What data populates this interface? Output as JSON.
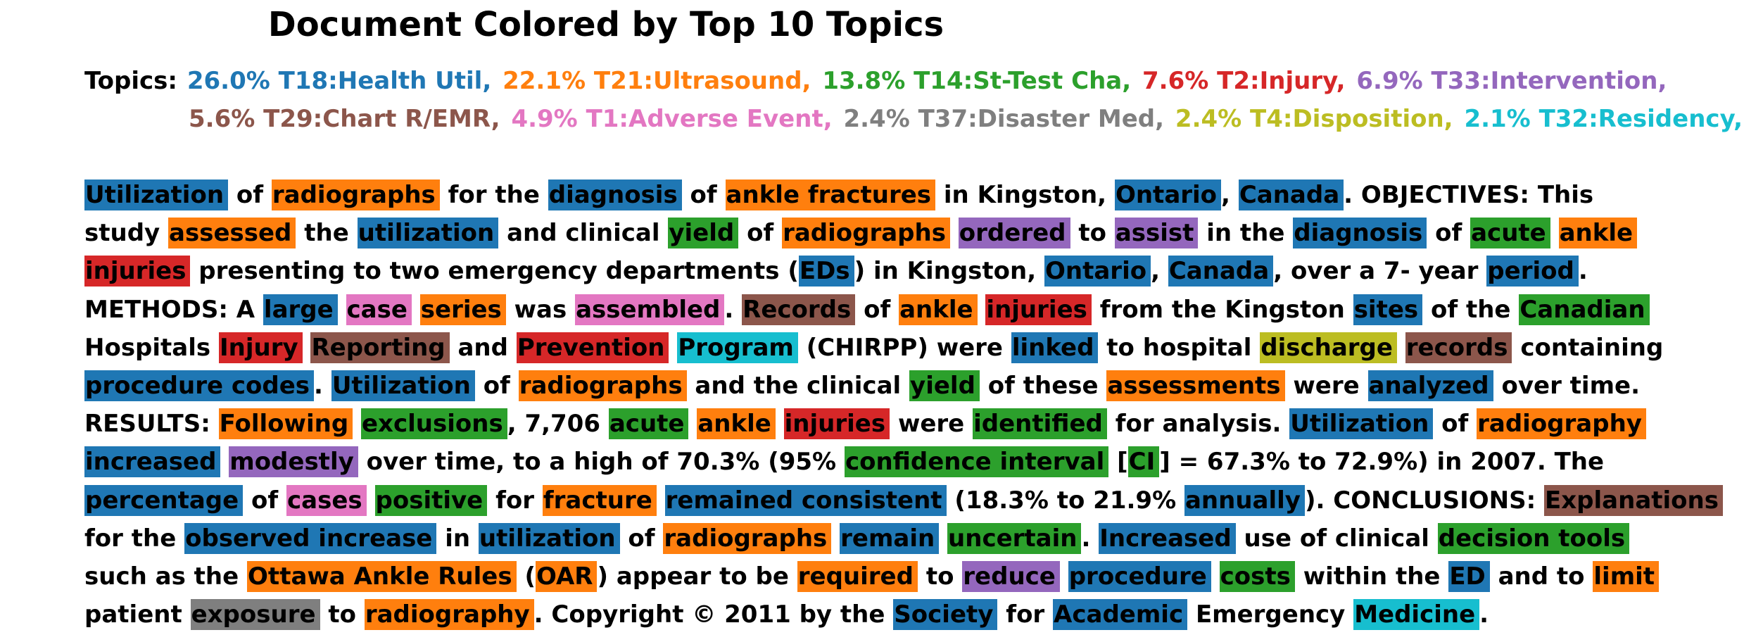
{
  "title": "Document Colored by Top 10 Topics",
  "legend": {
    "label": "Topics:",
    "rows": [
      [
        {
          "text": "26.0% T18:Health Util,",
          "color": "#1f77b4"
        },
        {
          "text": "22.1% T21:Ultrasound,",
          "color": "#ff7f0e"
        },
        {
          "text": "13.8% T14:St-Test Cha,",
          "color": "#2ca02c"
        },
        {
          "text": "7.6% T2:Injury,",
          "color": "#d62728"
        },
        {
          "text": "6.9% T33:Intervention,",
          "color": "#9467bd"
        }
      ],
      [
        {
          "text": "5.6% T29:Chart R/EMR,",
          "color": "#8c564b"
        },
        {
          "text": "4.9% T1:Adverse Event,",
          "color": "#e377c2"
        },
        {
          "text": "2.4% T37:Disaster Med,",
          "color": "#7f7f7f"
        },
        {
          "text": "2.4% T4:Disposition,",
          "color": "#bcbd22"
        },
        {
          "text": "2.1% T32:Residency,",
          "color": "#17becf"
        }
      ]
    ]
  },
  "topic_colors": {
    "T18": "#1f77b4",
    "T21": "#ff7f0e",
    "T14": "#2ca02c",
    "T2": "#d62728",
    "T33": "#9467bd",
    "T29": "#8c564b",
    "T1": "#e377c2",
    "T37": "#7f7f7f",
    "T4": "#bcbd22",
    "T32": "#17becf"
  },
  "lines": [
    [
      [
        "Utilization",
        "T18"
      ],
      [
        "of",
        null
      ],
      [
        "radiographs",
        "T21"
      ],
      [
        "for the",
        null
      ],
      [
        "diagnosis",
        "T18"
      ],
      [
        "of",
        null
      ],
      [
        "ankle fractures",
        "T21"
      ],
      [
        "in Kingston,",
        null
      ],
      [
        "Ontario",
        "T18"
      ],
      [
        ",",
        null
      ],
      [
        "Canada",
        "T18"
      ],
      [
        ". OBJECTIVES: This",
        null
      ]
    ],
    [
      [
        "study",
        null
      ],
      [
        "assessed",
        "T21"
      ],
      [
        "the",
        null
      ],
      [
        "utilization",
        "T18"
      ],
      [
        "and clinical",
        null
      ],
      [
        "yield",
        "T14"
      ],
      [
        "of",
        null
      ],
      [
        "radiographs",
        "T21"
      ],
      [
        "ordered",
        "T33"
      ],
      [
        "to",
        null
      ],
      [
        "assist",
        "T33"
      ],
      [
        "in the",
        null
      ],
      [
        "diagnosis",
        "T18"
      ],
      [
        "of",
        null
      ],
      [
        "acute",
        "T14"
      ],
      [
        "ankle",
        "T21"
      ]
    ],
    [
      [
        "injuries",
        "T2"
      ],
      [
        "presenting to two emergency departments (",
        null
      ],
      [
        "EDs",
        "T18"
      ],
      [
        ") in Kingston,",
        null
      ],
      [
        "Ontario",
        "T18"
      ],
      [
        ",",
        null
      ],
      [
        "Canada",
        "T18"
      ],
      [
        ", over a 7- year",
        null
      ],
      [
        "period",
        "T18"
      ],
      [
        ".",
        null
      ]
    ],
    [
      [
        "METHODS: A",
        null
      ],
      [
        "large",
        "T18"
      ],
      [
        "case",
        "T1"
      ],
      [
        "series",
        "T21"
      ],
      [
        "was",
        null
      ],
      [
        "assembled",
        "T1"
      ],
      [
        ".",
        null
      ],
      [
        "Records",
        "T29"
      ],
      [
        "of",
        null
      ],
      [
        "ankle",
        "T21"
      ],
      [
        "injuries",
        "T2"
      ],
      [
        "from the Kingston",
        null
      ],
      [
        "sites",
        "T18"
      ],
      [
        "of the",
        null
      ],
      [
        "Canadian",
        "T14"
      ]
    ],
    [
      [
        "Hospitals",
        null
      ],
      [
        "Injury",
        "T2"
      ],
      [
        "Reporting",
        "T29"
      ],
      [
        "and",
        null
      ],
      [
        "Prevention",
        "T2"
      ],
      [
        "Program",
        "T32"
      ],
      [
        "(CHIRPP) were",
        null
      ],
      [
        "linked",
        "T18"
      ],
      [
        "to hospital",
        null
      ],
      [
        "discharge",
        "T4"
      ],
      [
        "records",
        "T29"
      ],
      [
        "containing",
        null
      ]
    ],
    [
      [
        "procedure codes",
        "T18"
      ],
      [
        ".",
        null
      ],
      [
        "Utilization",
        "T18"
      ],
      [
        "of",
        null
      ],
      [
        "radiographs",
        "T21"
      ],
      [
        "and the clinical",
        null
      ],
      [
        "yield",
        "T14"
      ],
      [
        "of these",
        null
      ],
      [
        "assessments",
        "T21"
      ],
      [
        "were",
        null
      ],
      [
        "analyzed",
        "T18"
      ],
      [
        "over time.",
        null
      ]
    ],
    [
      [
        "RESULTS:",
        null
      ],
      [
        "Following",
        "T21"
      ],
      [
        "exclusions",
        "T14"
      ],
      [
        ", 7,706",
        null
      ],
      [
        "acute",
        "T14"
      ],
      [
        "ankle",
        "T21"
      ],
      [
        "injuries",
        "T2"
      ],
      [
        "were",
        null
      ],
      [
        "identified",
        "T14"
      ],
      [
        "for analysis.",
        null
      ],
      [
        "Utilization",
        "T18"
      ],
      [
        "of",
        null
      ],
      [
        "radiography",
        "T21"
      ]
    ],
    [
      [
        "increased",
        "T18"
      ],
      [
        "modestly",
        "T33"
      ],
      [
        "over time, to a high of 70.3% (95%",
        null
      ],
      [
        "confidence interval",
        "T14"
      ],
      [
        "[",
        null
      ],
      [
        "CI",
        "T14"
      ],
      [
        "] = 67.3% to 72.9%) in 2007. The",
        null
      ]
    ],
    [
      [
        "percentage",
        "T18"
      ],
      [
        "of",
        null
      ],
      [
        "cases",
        "T1"
      ],
      [
        "positive",
        "T14"
      ],
      [
        "for",
        null
      ],
      [
        "fracture",
        "T21"
      ],
      [
        "remained consistent",
        "T18"
      ],
      [
        "(18.3% to 21.9%",
        null
      ],
      [
        "annually",
        "T18"
      ],
      [
        "). CONCLUSIONS:",
        null
      ],
      [
        "Explanations",
        "T29"
      ]
    ],
    [
      [
        "for the",
        null
      ],
      [
        "observed increase",
        "T18"
      ],
      [
        "in",
        null
      ],
      [
        "utilization",
        "T18"
      ],
      [
        "of",
        null
      ],
      [
        "radiographs",
        "T21"
      ],
      [
        "remain",
        "T18"
      ],
      [
        "uncertain",
        "T14"
      ],
      [
        ".",
        null
      ],
      [
        "Increased",
        "T18"
      ],
      [
        "use of clinical",
        null
      ],
      [
        "decision tools",
        "T14"
      ]
    ],
    [
      [
        "such as the",
        null
      ],
      [
        "Ottawa Ankle Rules",
        "T21"
      ],
      [
        "(",
        null
      ],
      [
        "OAR",
        "T21"
      ],
      [
        ") appear to be",
        null
      ],
      [
        "required",
        "T21"
      ],
      [
        "to",
        null
      ],
      [
        "reduce",
        "T33"
      ],
      [
        "procedure",
        "T18"
      ],
      [
        "costs",
        "T14"
      ],
      [
        "within the",
        null
      ],
      [
        "ED",
        "T18"
      ],
      [
        "and to",
        null
      ],
      [
        "limit",
        "T21"
      ]
    ],
    [
      [
        "patient",
        null
      ],
      [
        "exposure",
        "T37"
      ],
      [
        "to",
        null
      ],
      [
        "radiography",
        "T21"
      ],
      [
        ". Copyright © 2011 by the",
        null
      ],
      [
        "Society",
        "T18"
      ],
      [
        "for",
        null
      ],
      [
        "Academic",
        "T18"
      ],
      [
        "Emergency",
        null
      ],
      [
        "Medicine",
        "T32"
      ],
      [
        ".",
        null
      ]
    ]
  ]
}
